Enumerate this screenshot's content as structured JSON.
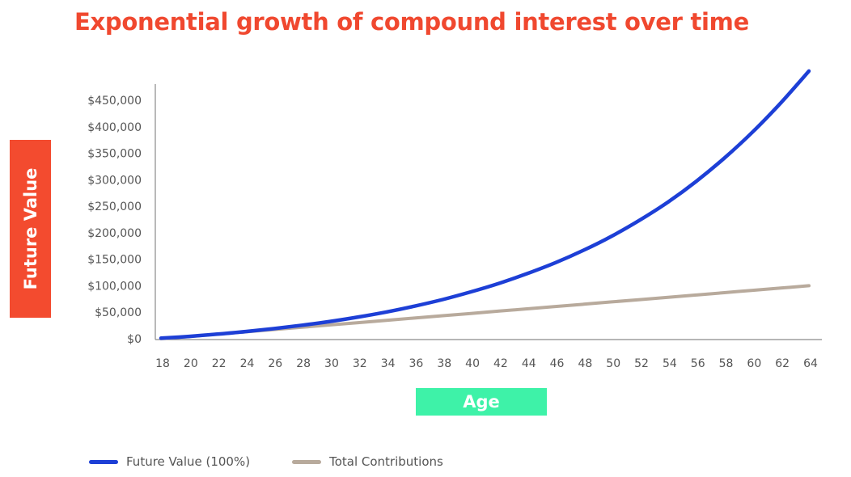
{
  "chart_data": {
    "type": "line",
    "title": "Exponential growth of compound interest over time",
    "xlabel": "Age",
    "ylabel": "Future Value",
    "x": [
      18,
      20,
      22,
      24,
      26,
      28,
      30,
      32,
      34,
      36,
      38,
      40,
      42,
      44,
      46,
      48,
      50,
      52,
      54,
      56,
      58,
      60,
      62,
      64
    ],
    "x_ticks": [
      "18",
      "20",
      "22",
      "24",
      "26",
      "28",
      "30",
      "32",
      "34",
      "36",
      "38",
      "40",
      "42",
      "44",
      "46",
      "48",
      "50",
      "52",
      "54",
      "56",
      "58",
      "60",
      "62",
      "64"
    ],
    "y_ticks": [
      {
        "value": 0,
        "label": "$0"
      },
      {
        "value": 50000,
        "label": "$50,000"
      },
      {
        "value": 100000,
        "label": "$100,000"
      },
      {
        "value": 150000,
        "label": "$150,000"
      },
      {
        "value": 200000,
        "label": "$200,000"
      },
      {
        "value": 250000,
        "label": "$250,000"
      },
      {
        "value": 300000,
        "label": "$300,000"
      },
      {
        "value": 350000,
        "label": "$350,000"
      },
      {
        "value": 400000,
        "label": "$400,000"
      },
      {
        "value": 450000,
        "label": "$450,000"
      }
    ],
    "xlim": [
      18,
      64
    ],
    "ylim": [
      0,
      480000
    ],
    "grid": false,
    "legend_position": "bottom-left",
    "series": [
      {
        "name": "Future Value (100%)",
        "color": "#1d3fd6",
        "values": [
          1000,
          4500,
          8700,
          13500,
          19000,
          25400,
          32600,
          41000,
          50500,
          61500,
          74000,
          88500,
          104500,
          123000,
          143500,
          167000,
          193500,
          224000,
          258000,
          297000,
          341000,
          390000,
          445000,
          505000
        ]
      },
      {
        "name": "Total Contributions",
        "color": "#b8aa9c",
        "values": [
          0,
          4300,
          8700,
          13000,
          17400,
          21700,
          26100,
          30400,
          34800,
          39100,
          43500,
          47800,
          52200,
          56500,
          60900,
          65200,
          69600,
          73900,
          78300,
          82600,
          87000,
          91300,
          95700,
          100000
        ]
      }
    ]
  }
}
